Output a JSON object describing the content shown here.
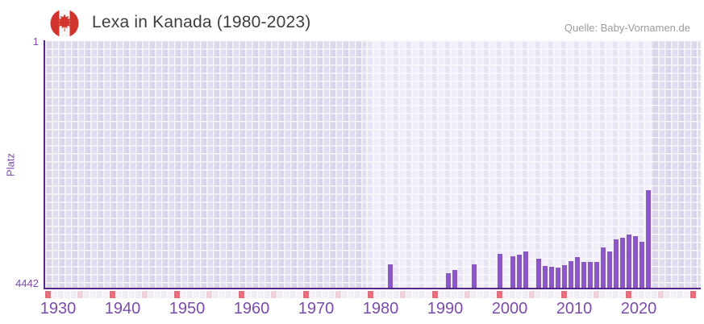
{
  "header": {
    "title": "Lexa in Kanada (1980-2023)",
    "source": "Quelle: Baby-Vornamen.de"
  },
  "chart_data": {
    "type": "bar",
    "title": "Lexa in Kanada (1980-2023)",
    "xlabel": "",
    "ylabel": "Platz",
    "legend": "none",
    "grid": true,
    "y_axis": {
      "min": 1,
      "max": 4442,
      "inverted": true,
      "top_tick_label": "1",
      "bottom_tick_label": "4442"
    },
    "x_axis": {
      "min": 1930,
      "max": 2031,
      "tick_labels": [
        "1930",
        "1940",
        "1950",
        "1960",
        "1970",
        "1980",
        "1990",
        "2000",
        "2010",
        "2020"
      ],
      "highlight_range": [
        1980,
        2023
      ],
      "decade_markers": [
        1930,
        1940,
        1950,
        1960,
        1970,
        1980,
        1990,
        2000,
        2010,
        2020,
        2030
      ],
      "half_decade_markers": [
        1935,
        1945,
        1955,
        1965,
        1975,
        1985,
        1995,
        2005,
        2015,
        2025
      ]
    },
    "series": [
      {
        "name": "Platz",
        "points": [
          {
            "year": 1983,
            "rank": 4020
          },
          {
            "year": 1992,
            "rank": 4175
          },
          {
            "year": 1993,
            "rank": 4120
          },
          {
            "year": 1996,
            "rank": 4025
          },
          {
            "year": 2000,
            "rank": 3835
          },
          {
            "year": 2002,
            "rank": 3875
          },
          {
            "year": 2003,
            "rank": 3845
          },
          {
            "year": 2004,
            "rank": 3785
          },
          {
            "year": 2006,
            "rank": 3920
          },
          {
            "year": 2007,
            "rank": 4050
          },
          {
            "year": 2008,
            "rank": 4060
          },
          {
            "year": 2009,
            "rank": 4075
          },
          {
            "year": 2010,
            "rank": 4035
          },
          {
            "year": 2011,
            "rank": 3960
          },
          {
            "year": 2012,
            "rank": 3885
          },
          {
            "year": 2013,
            "rank": 3985
          },
          {
            "year": 2014,
            "rank": 3985
          },
          {
            "year": 2015,
            "rank": 3985
          },
          {
            "year": 2016,
            "rank": 3720
          },
          {
            "year": 2017,
            "rank": 3790
          },
          {
            "year": 2018,
            "rank": 3580
          },
          {
            "year": 2019,
            "rank": 3545
          },
          {
            "year": 2020,
            "rank": 3490
          },
          {
            "year": 2021,
            "rank": 3520
          },
          {
            "year": 2022,
            "rank": 3620
          },
          {
            "year": 2023,
            "rank": 2690
          }
        ]
      }
    ],
    "colors": {
      "bar": "#8b57c6",
      "axis": "#57268b",
      "axis_label": "#7c4bad",
      "title_text": "#3e3e3e",
      "source_text": "#9b9b9b",
      "flag_red": "#d0342c",
      "decade_marker": "#e4707c",
      "half_decade_marker": "#f0d2dc",
      "strip_cell_a": "#efecf6",
      "strip_cell_b": "#f5f2f7"
    }
  }
}
